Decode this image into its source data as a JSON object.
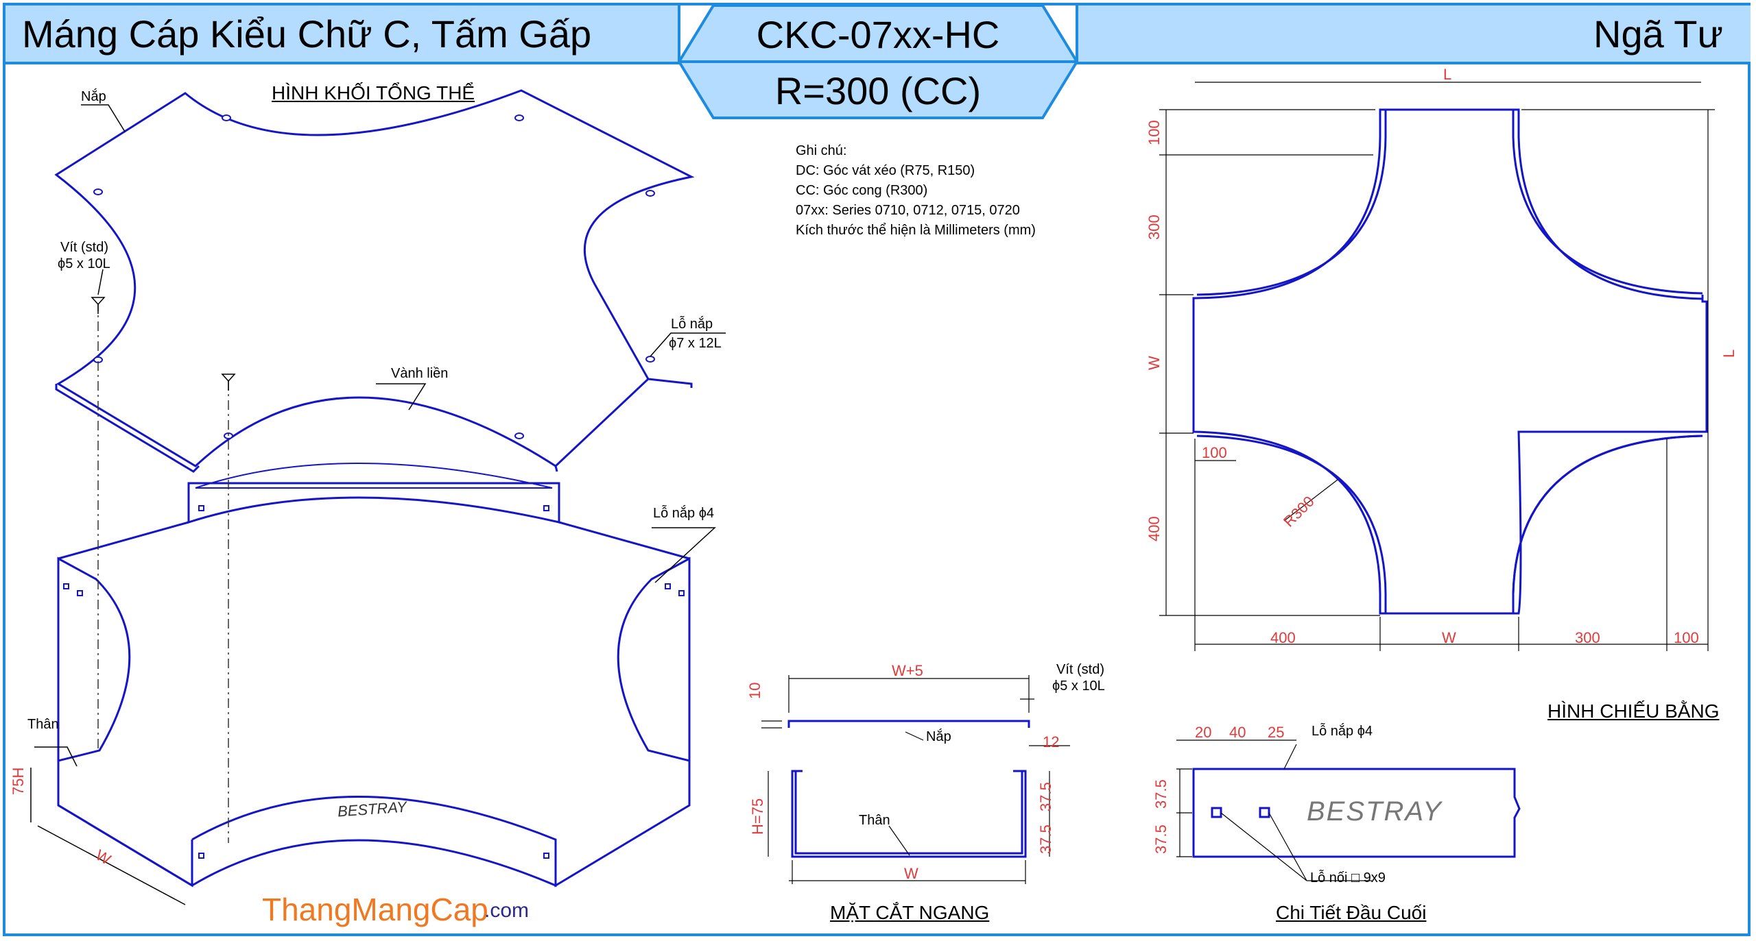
{
  "header": {
    "title_left": "Máng Cáp Kiểu Chữ C, Tấm Gấp",
    "code": "CKC-07xx-HC",
    "radius": "R=300 (CC)",
    "title_right": "Ngã Tư"
  },
  "sections": {
    "iso": "HÌNH KHỐI TỔNG THỂ",
    "plan": "HÌNH CHIẾU BẰNG",
    "cross": "MẶT CẮT NGANG",
    "end": "Chi Tiết Đầu Cuối"
  },
  "notes": {
    "title": "Ghi chú:",
    "lines": [
      "DC: Góc vát xéo (R75, R150)",
      "CC: Góc cong (R300)",
      "07xx: Series 0710, 0712, 0715, 0720",
      "Kích thước thể hiện là Millimeters (mm)"
    ]
  },
  "iso_labels": {
    "nap": "Nắp",
    "vit_1": "Vít (std)",
    "vit_2": "ϕ5 x 10L",
    "lo_nap_1": "Lỗ nắp",
    "lo_nap_2": "ϕ7 x 12L",
    "vanh_lien": "Vành liền",
    "lo_nap_4": "Lỗ nắp ϕ4",
    "than": "Thân",
    "h": "75H",
    "w": "W",
    "brand": "BESTRAY"
  },
  "plan_dims": {
    "L_top": "L",
    "L_right": "L",
    "d100_top": "100",
    "d300_left": "300",
    "W_left": "W",
    "d100_mid": "100",
    "R300": "R300",
    "d400_left": "400",
    "d400_bottom": "400",
    "W_bottom": "W",
    "d300_bottom": "300",
    "d100_bottom": "100"
  },
  "cross_labels": {
    "w5": "W+5",
    "d10": "10",
    "vit_1": "Vít (std)",
    "vit_2": "ϕ5 x 10L",
    "nap": "Nắp",
    "d12": "12",
    "h75": "H=75",
    "d37_5a": "37.5",
    "d37_5b": "37.5",
    "than": "Thân",
    "w": "W"
  },
  "end_labels": {
    "d20": "20",
    "d40": "40",
    "d25": "25",
    "lo_nap_4": "Lỗ nắp ϕ4",
    "d37_5a": "37.5",
    "d37_5b": "37.5",
    "brand": "BESTRAY",
    "lo_noi": "Lỗ nối □ 9x9"
  },
  "logo": {
    "main": "ThangMangCap",
    "suffix": ".com"
  },
  "colors": {
    "header_bg": "#b3dcff",
    "frame": "#1d8be0",
    "drawing": "#1515c8",
    "dimension": "#e23a3a",
    "logo": "#f07820"
  }
}
